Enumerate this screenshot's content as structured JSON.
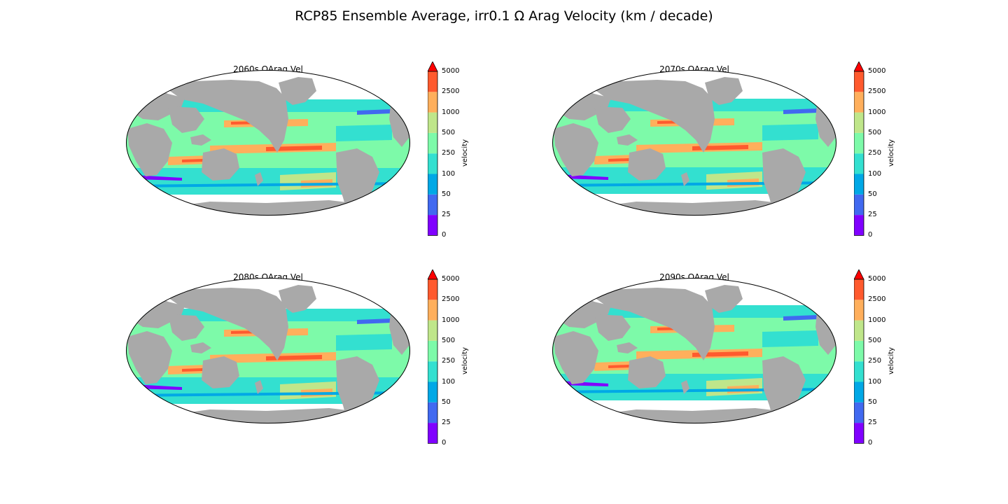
{
  "figure_title": "RCP85 Ensemble Average, irr0.1 Ω Arag Velocity (km / decade)",
  "colorbar": {
    "label": "velocity",
    "ticks": [
      "0",
      "25",
      "50",
      "100",
      "250",
      "500",
      "1000",
      "2500",
      "5000"
    ],
    "bin_colors": [
      "#8000ff",
      "#4169f0",
      "#00a8e6",
      "#33e0d0",
      "#7dfaa9",
      "#bfe68a",
      "#ffaf5c",
      "#ff5a2e"
    ],
    "extend_color": "#ff0000"
  },
  "colors": {
    "land": "#a9a9a9",
    "ocean_nodata": "#ffffff",
    "map_outline": "#000000"
  },
  "panels": [
    {
      "title": "2060s ΩArag Vel"
    },
    {
      "title": "2070s ΩArag Vel"
    },
    {
      "title": "2080s ΩArag Vel"
    },
    {
      "title": "2090s ΩArag Vel"
    }
  ]
}
